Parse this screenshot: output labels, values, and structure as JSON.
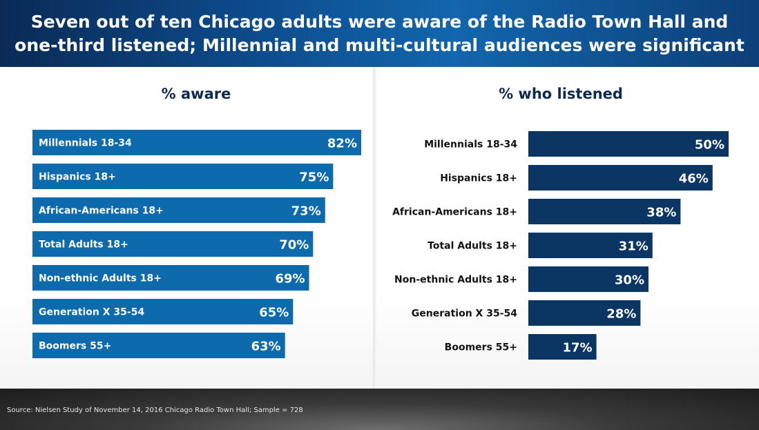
{
  "header": {
    "title": "Seven out of ten Chicago adults were aware of the Radio Town Hall and\none-third listened; Millennial and multi-cultural audiences were significant"
  },
  "chart_data": [
    {
      "type": "bar",
      "orientation": "horizontal",
      "title": "% aware",
      "categories": [
        "Millennials 18-34",
        "Hispanics 18+",
        "African-Americans 18+",
        "Total Adults 18+",
        "Non-ethnic Adults 18+",
        "Generation X 35-54",
        "Boomers 55+"
      ],
      "values": [
        82,
        75,
        73,
        70,
        69,
        65,
        63
      ],
      "labels": [
        "82%",
        "75%",
        "73%",
        "70%",
        "69%",
        "65%",
        "63%"
      ],
      "color": "#0c6aad",
      "category_label_position": "inside",
      "xlim": [
        0,
        100
      ]
    },
    {
      "type": "bar",
      "orientation": "horizontal",
      "title": "% who listened",
      "categories": [
        "Millennials 18-34",
        "Hispanics 18+",
        "African-Americans 18+",
        "Total Adults 18+",
        "Non-ethnic Adults 18+",
        "Generation X 35-54",
        "Boomers 55+"
      ],
      "values": [
        50,
        46,
        38,
        31,
        30,
        28,
        17
      ],
      "labels": [
        "50%",
        "46%",
        "38%",
        "31%",
        "30%",
        "28%",
        "17%"
      ],
      "color": "#0b3563",
      "category_label_position": "outside-left",
      "xlim": [
        0,
        100
      ]
    }
  ],
  "footer": {
    "source": "Source: Nielsen Study of November 14, 2016 Chicago Radio Town Hall; Sample = 728"
  }
}
